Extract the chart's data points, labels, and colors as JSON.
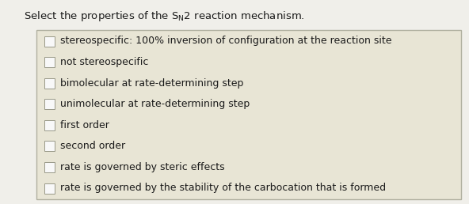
{
  "background_color": "#f0efea",
  "box_bg_color": "#e8e5d5",
  "box_border_color": "#b0b0a0",
  "text_color": "#1a1a1a",
  "checkbox_fill": "#f8f8f8",
  "checkbox_border": "#999988",
  "items": [
    "stereospecific: 100% inversion of configuration at the reaction site",
    "not stereospecific",
    "bimolecular at rate-determining step",
    "unimolecular at rate-determining step",
    "first order",
    "second order",
    "rate is governed by steric effects",
    "rate is governed by the stability of the carbocation that is formed"
  ],
  "font_size_title": 9.5,
  "font_size_items": 9.0,
  "fig_width": 5.92,
  "fig_height": 2.58,
  "dpi": 100
}
